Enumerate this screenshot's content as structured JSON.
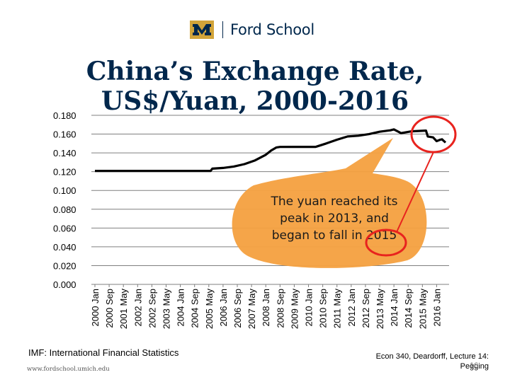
{
  "header": {
    "logo_letter": "M",
    "brand": "Ford School"
  },
  "slide": {
    "title": "China’s Exchange Rate, US$/Yuan, 2000-2016",
    "source": "IMF: International Financial Statistics",
    "url": "www.fordschool.umich.edu",
    "course": "Econ 340, Deardorff, Lecture 14: Pegging",
    "page": "16"
  },
  "colors": {
    "navy": "#00274c",
    "maize": "#d2a43a",
    "callout": "#f5a142",
    "highlight": "#e8231e",
    "line": "#000000",
    "grid": "#7f7f7f"
  },
  "chart_data": {
    "type": "line",
    "title": "China’s Exchange Rate, US$/Yuan, 2000-2016",
    "xlabel": "",
    "ylabel": "",
    "ylim": [
      0,
      0.18
    ],
    "y_ticks": [
      "0.000",
      "0.020",
      "0.040",
      "0.060",
      "0.080",
      "0.100",
      "0.120",
      "0.140",
      "0.160",
      "0.180"
    ],
    "grid": true,
    "legend": "none",
    "x_tick_labels": [
      "2000 Jan",
      "2000 Sep",
      "2001 May",
      "2002 Jan",
      "2002 Sep",
      "2003 May",
      "2004 Jan",
      "2004 Sep",
      "2005 May",
      "2006 Jan",
      "2006 Sep",
      "2007 May",
      "2008 Jan",
      "2008 Sep",
      "2009 May",
      "2010 Jan",
      "2010 Sep",
      "2011 May",
      "2012 Jan",
      "2012 Sep",
      "2013 May",
      "2014 Jan",
      "2014 Sep",
      "2015 May",
      "2016 Jan"
    ],
    "series": [
      {
        "x": [
          "2000 Jan",
          "2005 Jun",
          "2005 Jul",
          "2006 Jan",
          "2006 Jul",
          "2007 Jan",
          "2007 Jul",
          "2008 Jan",
          "2008 Apr",
          "2008 Jul",
          "2008 Sep",
          "2009 May",
          "2010 May",
          "2010 Jun",
          "2010 Nov",
          "2011 May",
          "2011 Nov",
          "2012 May",
          "2012 Nov",
          "2013 May",
          "2013 Nov",
          "2014 Jan",
          "2014 May",
          "2014 Nov",
          "2015 Jul",
          "2015 Aug",
          "2015 Nov",
          "2016 Jan",
          "2016 Mar",
          "2016 Apr",
          "2016 Jun"
        ],
        "values": [
          0.1208,
          0.1208,
          0.1232,
          0.124,
          0.1255,
          0.128,
          0.132,
          0.138,
          0.1425,
          0.1458,
          0.1463,
          0.1464,
          0.1464,
          0.147,
          0.15,
          0.154,
          0.1575,
          0.1583,
          0.16,
          0.1625,
          0.164,
          0.165,
          0.161,
          0.163,
          0.1637,
          0.1575,
          0.1565,
          0.1525,
          0.154,
          0.1545,
          0.151
        ]
      }
    ],
    "annotations": [
      {
        "text": "The yuan reached its peak in 2013, and began to fall in 2015"
      }
    ]
  }
}
